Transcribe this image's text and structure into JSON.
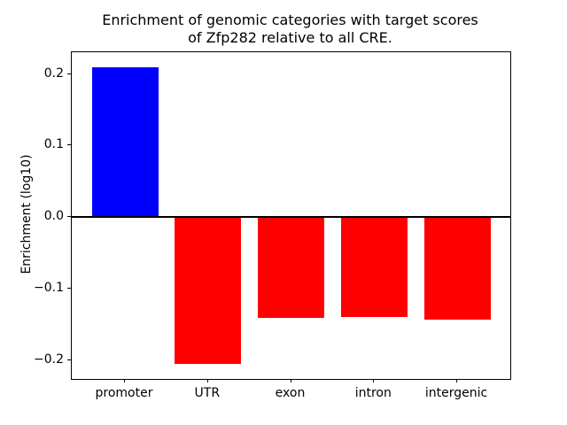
{
  "chart_data": {
    "type": "bar",
    "title_line1": "Enrichment of genomic categories with target scores",
    "title_line2": "of Zfp282 relative to all CRE.",
    "ylabel": "Enrichment (log10)",
    "xlabel": "",
    "categories": [
      "promoter",
      "UTR",
      "exon",
      "intron",
      "intergenic"
    ],
    "values": [
      0.21,
      -0.205,
      -0.141,
      -0.14,
      -0.144
    ],
    "bar_colors": [
      "#0000ff",
      "#ff0000",
      "#ff0000",
      "#ff0000",
      "#ff0000"
    ],
    "positive_color": "#0000ff",
    "negative_color": "#ff0000",
    "yticks": [
      0.2,
      0.1,
      0.0,
      -0.1,
      -0.2
    ],
    "ytick_labels": [
      "0.2",
      "0.1",
      "0.0",
      "−0.1",
      "−0.2"
    ],
    "ylim": [
      -0.2265,
      0.2306
    ],
    "xlim": [
      -0.64,
      4.64
    ],
    "bar_width": 0.8,
    "grid": false,
    "zero_line": true,
    "legend": "none",
    "spine_color": "#000000",
    "background_color": "#ffffff"
  }
}
